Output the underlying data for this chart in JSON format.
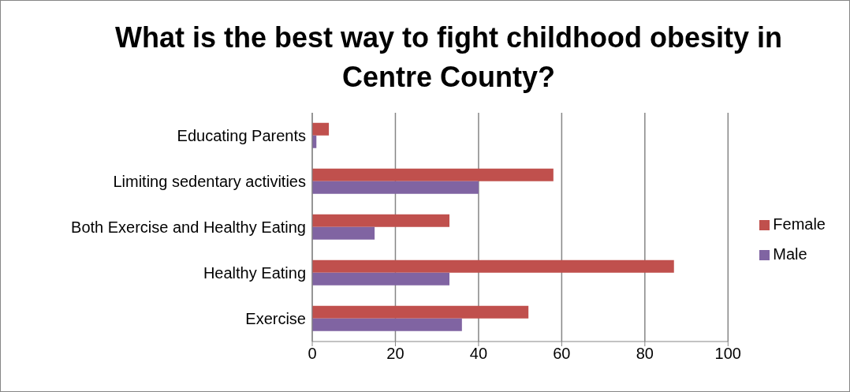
{
  "chart_data": {
    "type": "bar",
    "orientation": "horizontal",
    "title": "What is the best way to fight childhood obesity in Centre County?",
    "categories": [
      "Educating Parents",
      "Limiting sedentary activities",
      "Both Exercise and Healthy Eating",
      "Healthy Eating",
      "Exercise"
    ],
    "series": [
      {
        "name": "Female",
        "color": "#c0504d",
        "values": [
          4,
          58,
          33,
          87,
          52
        ]
      },
      {
        "name": "Male",
        "color": "#8064a2",
        "values": [
          1,
          40,
          15,
          33,
          36
        ]
      }
    ],
    "xlim": [
      0,
      100
    ],
    "xticks": [
      0,
      20,
      40,
      60,
      80,
      100
    ],
    "grid": "x",
    "legend": "right"
  }
}
